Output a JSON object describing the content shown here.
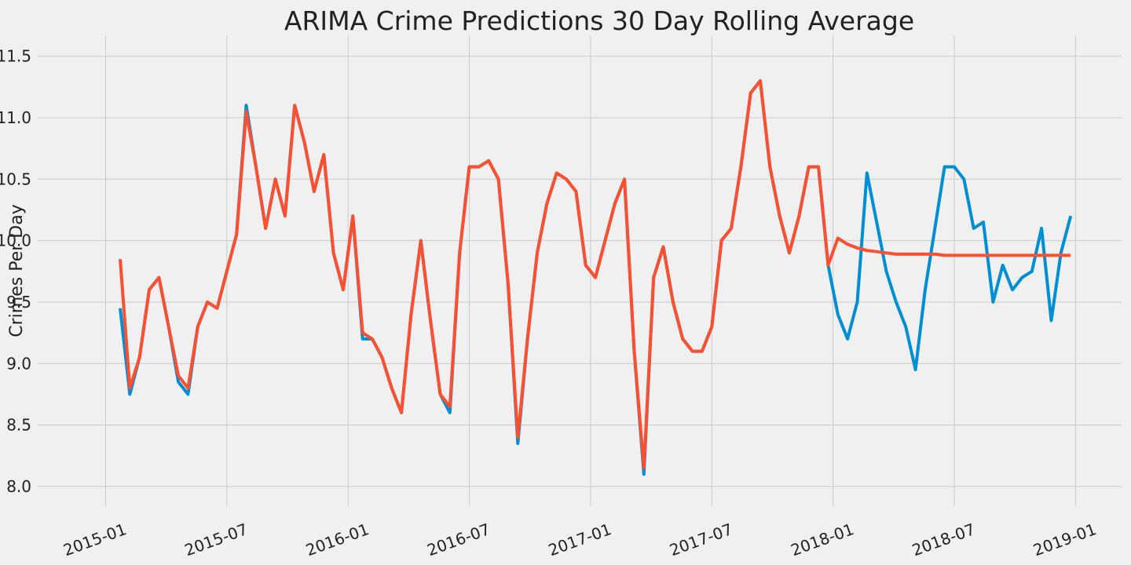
{
  "chart_data": {
    "type": "line",
    "title": "ARIMA Crime Predictions 30 Day Rolling Average",
    "y_label": "Crimes Per Day",
    "x": [
      2015.06,
      2015.1,
      2015.14,
      2015.18,
      2015.22,
      2015.26,
      2015.3,
      2015.34,
      2015.38,
      2015.42,
      2015.46,
      2015.5,
      2015.54,
      2015.58,
      2015.62,
      2015.66,
      2015.7,
      2015.74,
      2015.78,
      2015.82,
      2015.86,
      2015.9,
      2015.94,
      2015.98,
      2016.02,
      2016.06,
      2016.1,
      2016.14,
      2016.18,
      2016.22,
      2016.26,
      2016.3,
      2016.34,
      2016.38,
      2016.42,
      2016.46,
      2016.5,
      2016.54,
      2016.58,
      2016.62,
      2016.66,
      2016.7,
      2016.74,
      2016.78,
      2016.82,
      2016.86,
      2016.9,
      2016.94,
      2016.98,
      2017.02,
      2017.06,
      2017.1,
      2017.14,
      2017.18,
      2017.22,
      2017.26,
      2017.3,
      2017.34,
      2017.38,
      2017.42,
      2017.46,
      2017.5,
      2017.54,
      2017.58,
      2017.62,
      2017.66,
      2017.7,
      2017.74,
      2017.78,
      2017.82,
      2017.86,
      2017.9,
      2017.94,
      2017.98,
      2018.02,
      2018.06,
      2018.1,
      2018.14,
      2018.18,
      2018.22,
      2018.26,
      2018.3,
      2018.34,
      2018.38,
      2018.42,
      2018.46,
      2018.5,
      2018.54,
      2018.58,
      2018.62,
      2018.66,
      2018.7,
      2018.74,
      2018.78,
      2018.82,
      2018.86,
      2018.9,
      2018.94,
      2018.98
    ],
    "series": [
      {
        "color": "#008fd5",
        "values": [
          9.45,
          8.75,
          9.05,
          9.6,
          9.7,
          9.3,
          8.85,
          8.75,
          9.3,
          9.5,
          9.45,
          9.75,
          10.05,
          11.1,
          10.6,
          10.1,
          10.5,
          10.2,
          11.1,
          10.8,
          10.4,
          10.7,
          9.9,
          9.6,
          10.2,
          9.2,
          9.2,
          9.05,
          8.8,
          8.6,
          9.4,
          10.0,
          9.35,
          8.75,
          8.6,
          9.9,
          10.6,
          10.6,
          10.65,
          10.5,
          9.65,
          8.35,
          9.2,
          9.9,
          10.3,
          10.55,
          10.5,
          10.4,
          9.8,
          9.7,
          10.0,
          10.3,
          10.5,
          9.1,
          8.1,
          9.7,
          9.95,
          9.5,
          9.2,
          9.1,
          9.1,
          9.3,
          10.0,
          10.1,
          10.6,
          11.2,
          11.3,
          10.6,
          10.2,
          9.9,
          10.2,
          10.6,
          10.6,
          9.8,
          9.4,
          9.2,
          9.5,
          10.55,
          10.15,
          9.75,
          9.5,
          9.3,
          8.95,
          9.6,
          10.1,
          10.6,
          10.6,
          10.5,
          10.1,
          10.15,
          9.5,
          9.8,
          9.6,
          9.7,
          9.75,
          10.1,
          9.35,
          9.9,
          10.2
        ]
      },
      {
        "color": "#fc4f30",
        "values": [
          9.85,
          8.8,
          9.05,
          9.6,
          9.7,
          9.3,
          8.9,
          8.8,
          9.3,
          9.5,
          9.45,
          9.75,
          10.05,
          11.05,
          10.6,
          10.1,
          10.5,
          10.2,
          11.1,
          10.8,
          10.4,
          10.7,
          9.9,
          9.6,
          10.2,
          9.25,
          9.2,
          9.05,
          8.8,
          8.6,
          9.4,
          10.0,
          9.35,
          8.75,
          8.65,
          9.9,
          10.6,
          10.6,
          10.65,
          10.5,
          9.65,
          8.4,
          9.2,
          9.9,
          10.3,
          10.55,
          10.5,
          10.4,
          9.8,
          9.7,
          10.0,
          10.3,
          10.5,
          9.1,
          8.15,
          9.7,
          9.95,
          9.5,
          9.2,
          9.1,
          9.1,
          9.3,
          10.0,
          10.1,
          10.6,
          11.2,
          11.3,
          10.6,
          10.2,
          9.9,
          10.2,
          10.6,
          10.6,
          9.8,
          10.02,
          9.97,
          9.94,
          9.92,
          9.91,
          9.9,
          9.89,
          9.89,
          9.89,
          9.89,
          9.89,
          9.88,
          9.88,
          9.88,
          9.88,
          9.88,
          9.88,
          9.88,
          9.88,
          9.88,
          9.88,
          9.88,
          9.88,
          9.88,
          9.88
        ]
      }
    ],
    "xlim": [
      2014.72,
      2019.19
    ],
    "xticks": [
      {
        "value": 2015.0,
        "label": "2015-01"
      },
      {
        "value": 2015.5,
        "label": "2015-07"
      },
      {
        "value": 2016.0,
        "label": "2016-01"
      },
      {
        "value": 2016.5,
        "label": "2016-07"
      },
      {
        "value": 2017.0,
        "label": "2017-01"
      },
      {
        "value": 2017.5,
        "label": "2017-07"
      },
      {
        "value": 2018.0,
        "label": "2018-01"
      },
      {
        "value": 2018.5,
        "label": "2018-07"
      },
      {
        "value": 2019.0,
        "label": "2019-01"
      }
    ],
    "ylim": [
      7.84,
      11.67
    ],
    "yticks": [
      {
        "value": 8,
        "label": "8.0"
      },
      8.5,
      {
        "value": 9,
        "label": "9.0"
      },
      9.5,
      {
        "value": 10,
        "label": "10.0"
      },
      10.5,
      {
        "value": 11,
        "label": "11.0"
      },
      11.5
    ],
    "grid": true
  }
}
